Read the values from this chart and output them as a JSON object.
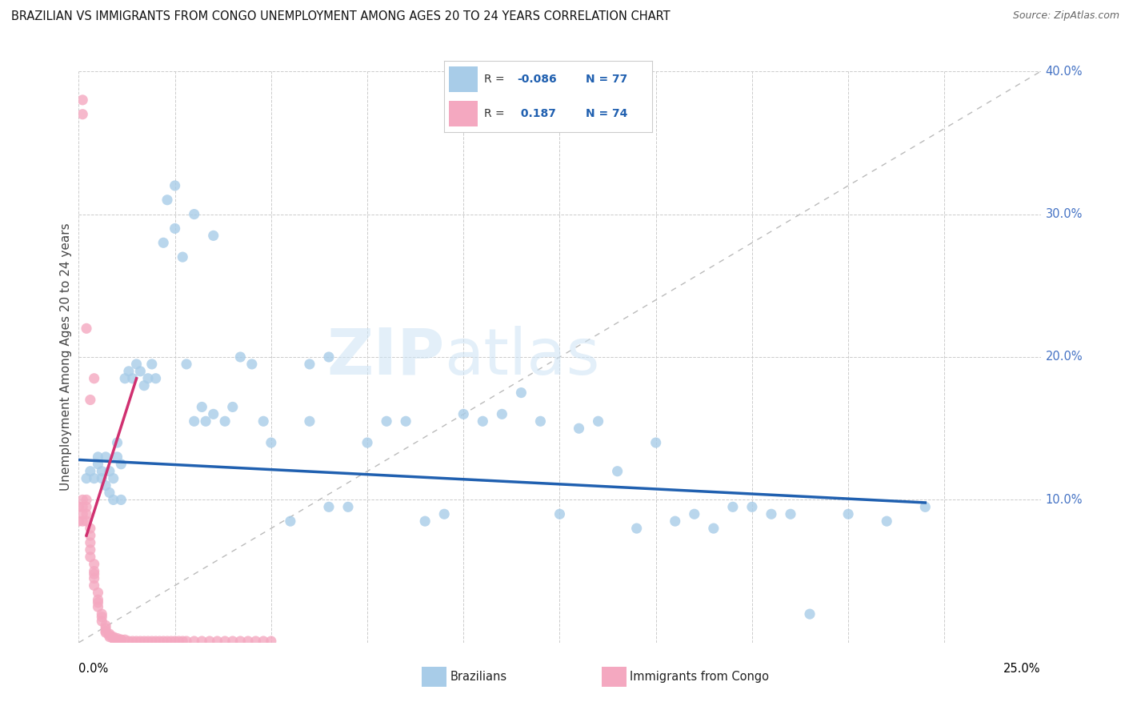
{
  "title": "BRAZILIAN VS IMMIGRANTS FROM CONGO UNEMPLOYMENT AMONG AGES 20 TO 24 YEARS CORRELATION CHART",
  "source": "Source: ZipAtlas.com",
  "ylabel": "Unemployment Among Ages 20 to 24 years",
  "xlim": [
    0,
    0.25
  ],
  "ylim": [
    0,
    0.4
  ],
  "blue_R": -0.086,
  "blue_N": 77,
  "pink_R": 0.187,
  "pink_N": 74,
  "blue_color": "#a8cce8",
  "pink_color": "#f4a8c0",
  "blue_trend_color": "#2060b0",
  "pink_trend_color": "#d03070",
  "brazilians_label": "Brazilians",
  "congo_label": "Immigrants from Congo",
  "blue_x": [
    0.002,
    0.003,
    0.004,
    0.005,
    0.005,
    0.006,
    0.006,
    0.007,
    0.007,
    0.008,
    0.008,
    0.009,
    0.009,
    0.01,
    0.01,
    0.011,
    0.011,
    0.012,
    0.013,
    0.014,
    0.015,
    0.016,
    0.017,
    0.018,
    0.019,
    0.02,
    0.022,
    0.023,
    0.025,
    0.027,
    0.028,
    0.03,
    0.032,
    0.033,
    0.035,
    0.038,
    0.04,
    0.042,
    0.045,
    0.048,
    0.05,
    0.055,
    0.06,
    0.065,
    0.07,
    0.075,
    0.08,
    0.085,
    0.09,
    0.095,
    0.1,
    0.105,
    0.11,
    0.115,
    0.12,
    0.125,
    0.13,
    0.135,
    0.14,
    0.145,
    0.15,
    0.155,
    0.16,
    0.165,
    0.17,
    0.175,
    0.18,
    0.185,
    0.19,
    0.2,
    0.21,
    0.22,
    0.025,
    0.03,
    0.035,
    0.06,
    0.065
  ],
  "blue_y": [
    0.115,
    0.12,
    0.115,
    0.13,
    0.125,
    0.115,
    0.12,
    0.13,
    0.11,
    0.12,
    0.105,
    0.115,
    0.1,
    0.14,
    0.13,
    0.125,
    0.1,
    0.185,
    0.19,
    0.185,
    0.195,
    0.19,
    0.18,
    0.185,
    0.195,
    0.185,
    0.28,
    0.31,
    0.29,
    0.27,
    0.195,
    0.155,
    0.165,
    0.155,
    0.16,
    0.155,
    0.165,
    0.2,
    0.195,
    0.155,
    0.14,
    0.085,
    0.155,
    0.095,
    0.095,
    0.14,
    0.155,
    0.155,
    0.085,
    0.09,
    0.16,
    0.155,
    0.16,
    0.175,
    0.155,
    0.09,
    0.15,
    0.155,
    0.12,
    0.08,
    0.14,
    0.085,
    0.09,
    0.08,
    0.095,
    0.095,
    0.09,
    0.09,
    0.02,
    0.09,
    0.085,
    0.095,
    0.32,
    0.3,
    0.285,
    0.195,
    0.2
  ],
  "pink_x": [
    0.0,
    0.0,
    0.001,
    0.001,
    0.001,
    0.001,
    0.002,
    0.002,
    0.002,
    0.002,
    0.003,
    0.003,
    0.003,
    0.003,
    0.003,
    0.004,
    0.004,
    0.004,
    0.004,
    0.004,
    0.005,
    0.005,
    0.005,
    0.005,
    0.006,
    0.006,
    0.006,
    0.007,
    0.007,
    0.007,
    0.007,
    0.008,
    0.008,
    0.008,
    0.009,
    0.009,
    0.009,
    0.01,
    0.01,
    0.011,
    0.011,
    0.012,
    0.013,
    0.014,
    0.015,
    0.016,
    0.017,
    0.018,
    0.019,
    0.02,
    0.021,
    0.022,
    0.023,
    0.024,
    0.025,
    0.026,
    0.027,
    0.028,
    0.03,
    0.032,
    0.034,
    0.036,
    0.038,
    0.04,
    0.042,
    0.044,
    0.046,
    0.048,
    0.05,
    0.001,
    0.001,
    0.002,
    0.003,
    0.004
  ],
  "pink_y": [
    0.095,
    0.085,
    0.1,
    0.095,
    0.09,
    0.085,
    0.1,
    0.095,
    0.09,
    0.085,
    0.08,
    0.075,
    0.07,
    0.065,
    0.06,
    0.055,
    0.05,
    0.048,
    0.045,
    0.04,
    0.035,
    0.03,
    0.028,
    0.025,
    0.02,
    0.018,
    0.015,
    0.012,
    0.01,
    0.008,
    0.007,
    0.006,
    0.005,
    0.004,
    0.004,
    0.003,
    0.003,
    0.003,
    0.002,
    0.002,
    0.002,
    0.002,
    0.001,
    0.001,
    0.001,
    0.001,
    0.001,
    0.001,
    0.001,
    0.001,
    0.001,
    0.001,
    0.001,
    0.001,
    0.001,
    0.001,
    0.001,
    0.001,
    0.001,
    0.001,
    0.001,
    0.001,
    0.001,
    0.001,
    0.001,
    0.001,
    0.001,
    0.001,
    0.001,
    0.38,
    0.37,
    0.22,
    0.17,
    0.185
  ],
  "blue_trend_x0": 0.0,
  "blue_trend_x1": 0.22,
  "blue_trend_y0": 0.128,
  "blue_trend_y1": 0.098,
  "pink_trend_x0": 0.002,
  "pink_trend_x1": 0.015,
  "pink_trend_y0": 0.075,
  "pink_trend_y1": 0.185,
  "ref_line_x0": 0.0,
  "ref_line_x1": 0.25,
  "ref_line_y0": 0.0,
  "ref_line_y1": 0.4
}
